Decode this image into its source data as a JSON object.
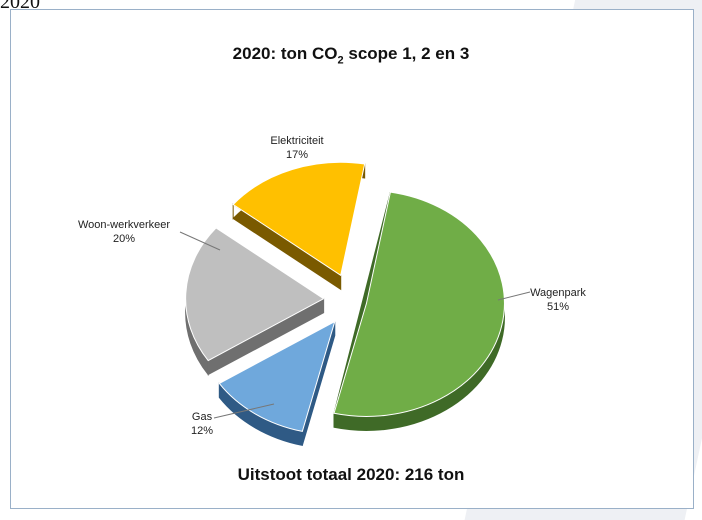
{
  "page": {
    "top_text": "2020",
    "title_prefix": "2020: ton CO",
    "title_sub": "2",
    "title_suffix": " scope 1, 2 en 3",
    "footer": "Uitstoot totaal 2020:  216 ton"
  },
  "chart_data": {
    "type": "pie",
    "title": "2020: ton CO2 scope 1, 2 en 3",
    "series": [
      {
        "name": "Wagenpark",
        "value": 51,
        "label": "51%",
        "color": "#70ad47",
        "side": "#3f6a27"
      },
      {
        "name": "Gas",
        "value": 12,
        "label": "12%",
        "color": "#6fa8dc",
        "side": "#2f5a85"
      },
      {
        "name": "Woon-werkverkeer",
        "value": 20,
        "label": "20%",
        "color": "#bfbfbf",
        "side": "#6f6f6f"
      },
      {
        "name": "Elektriciteit",
        "value": 17,
        "label": "17%",
        "color": "#ffc000",
        "side": "#7a5a00"
      }
    ],
    "exploded": true,
    "three_d": true
  }
}
